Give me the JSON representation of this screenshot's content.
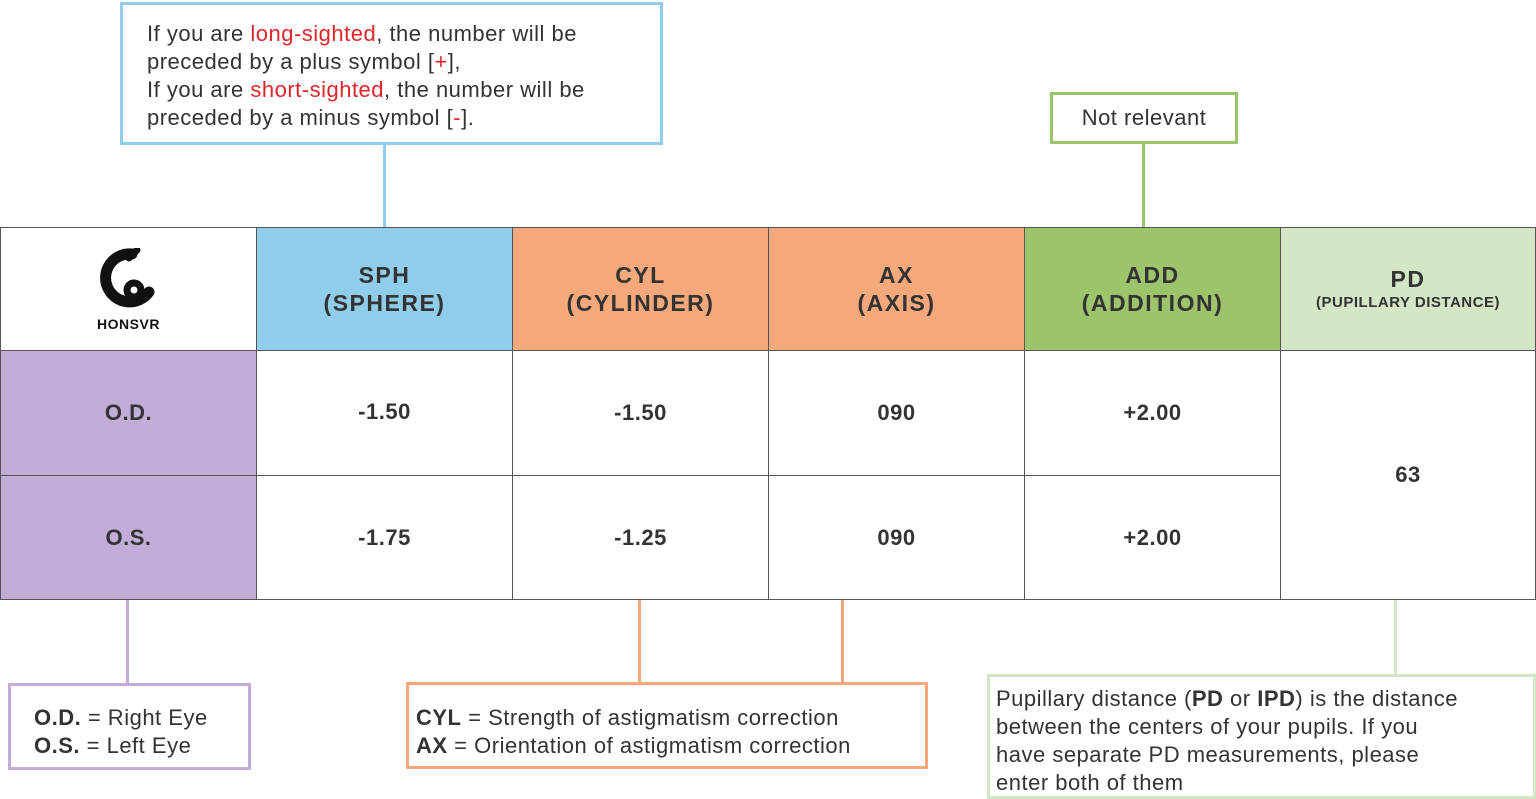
{
  "top_note": {
    "line1_pre": "If you are ",
    "line1_hl": "long-sighted",
    "line1_post": ", the number will be",
    "line2_pre": "preceded by a plus symbol [",
    "line2_hl": "+",
    "line2_post": "],",
    "line3_pre": "If you are ",
    "line3_hl": "short-sighted",
    "line3_post": ", the number will be",
    "line4_pre": "preceded by a minus symbol [",
    "line4_hl": "-",
    "line4_post": "]."
  },
  "add_note": "Not relevant",
  "logo": {
    "text": "HONSVR"
  },
  "headers": {
    "sph_1": "SPH",
    "sph_2": "(SPHERE)",
    "cyl_1": "CYL",
    "cyl_2": "(CYLINDER)",
    "ax_1": "AX",
    "ax_2": "(AXIS)",
    "add_1": "ADD",
    "add_2": "(ADDITION)",
    "pd_1": "PD",
    "pd_2": "(PUPILLARY DISTANCE)"
  },
  "rows": [
    {
      "label": "O.D.",
      "sph": "-1.50",
      "cyl": "-1.50",
      "ax": "090",
      "add": "+2.00"
    },
    {
      "label": "O.S.",
      "sph": "-1.75",
      "cyl": "-1.25",
      "ax": "090",
      "add": "+2.00"
    }
  ],
  "pd_value": "63",
  "eye_note": {
    "od_key": "O.D.",
    "od_text": " = Right Eye",
    "os_key": "O.S.",
    "os_text": " = Left Eye"
  },
  "cyl_note": {
    "cyl_key": "CYL",
    "cyl_text": " = Strength of astigmatism correction",
    "ax_key": "AX",
    "ax_text": " = Orientation of astigmatism correction"
  },
  "pd_note": {
    "pre": "Pupillary distance (",
    "pd": "PD",
    "or": " or ",
    "ipd": "IPD",
    "l1_post": ") is the distance",
    "line2": "between the centers of your pupils. If you",
    "line3": "have separate PD measurements, please",
    "line4": "enter both of them"
  },
  "colors": {
    "blue": "#8fcdea",
    "orange": "#f5a97a",
    "green": "#9bc46b",
    "light_green": "#d3e6c5",
    "purple": "#c3acd8",
    "red": "#e0262a"
  }
}
